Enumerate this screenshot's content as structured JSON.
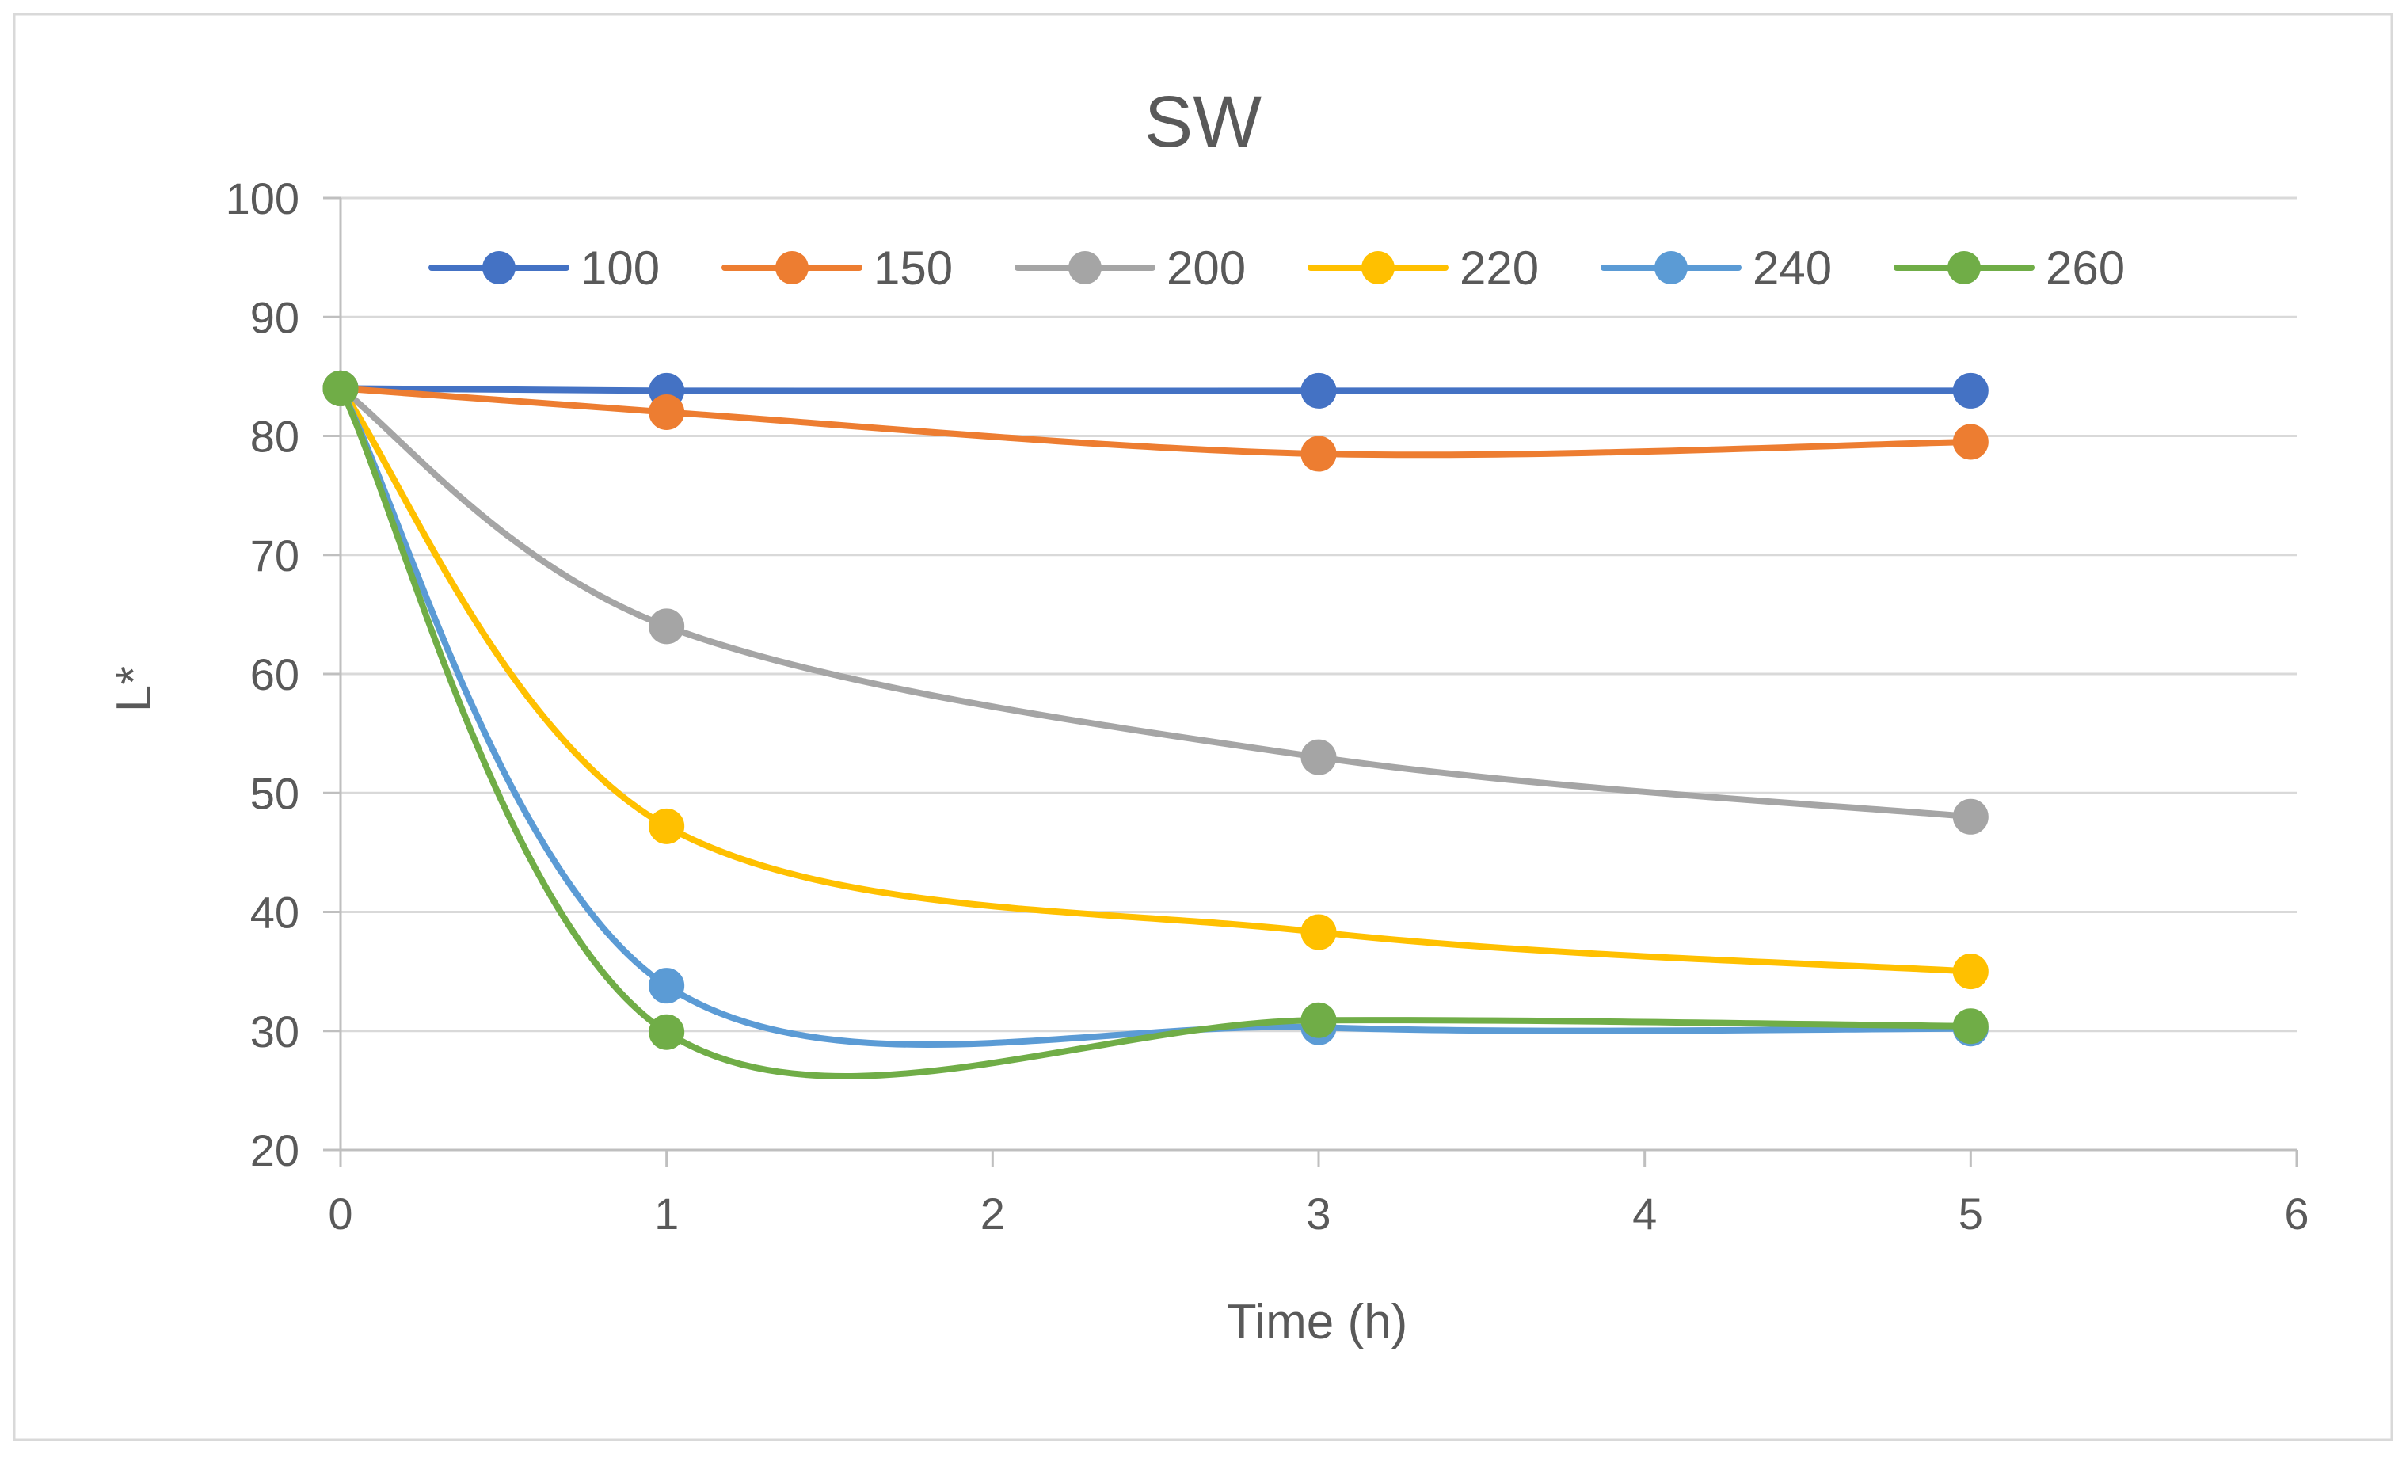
{
  "chart_data": {
    "type": "line",
    "title": "SW",
    "xlabel": "Time (h)",
    "ylabel": "L*",
    "xlim": [
      0,
      6
    ],
    "ylim": [
      20,
      100
    ],
    "x_ticks": [
      "0",
      "1",
      "2",
      "3",
      "4",
      "5",
      "6"
    ],
    "y_ticks": [
      "20",
      "30",
      "40",
      "50",
      "60",
      "70",
      "80",
      "90",
      "100"
    ],
    "grid": "horizontal",
    "legend_position": "top",
    "x": [
      0,
      1,
      3,
      5
    ],
    "series": [
      {
        "name": "100",
        "color": "#4472C4",
        "values": [
          84,
          83.8,
          83.8,
          83.8
        ]
      },
      {
        "name": "150",
        "color": "#ED7D31",
        "values": [
          84,
          82,
          78.5,
          79.5
        ]
      },
      {
        "name": "200",
        "color": "#A5A5A5",
        "values": [
          84,
          64,
          53,
          48
        ]
      },
      {
        "name": "220",
        "color": "#FFC000",
        "values": [
          84,
          47.2,
          38.3,
          35
        ]
      },
      {
        "name": "240",
        "color": "#5B9BD5",
        "values": [
          84,
          33.8,
          30.3,
          30.2
        ]
      },
      {
        "name": "260",
        "color": "#70AD47",
        "values": [
          84,
          29.9,
          30.9,
          30.4
        ]
      }
    ]
  }
}
